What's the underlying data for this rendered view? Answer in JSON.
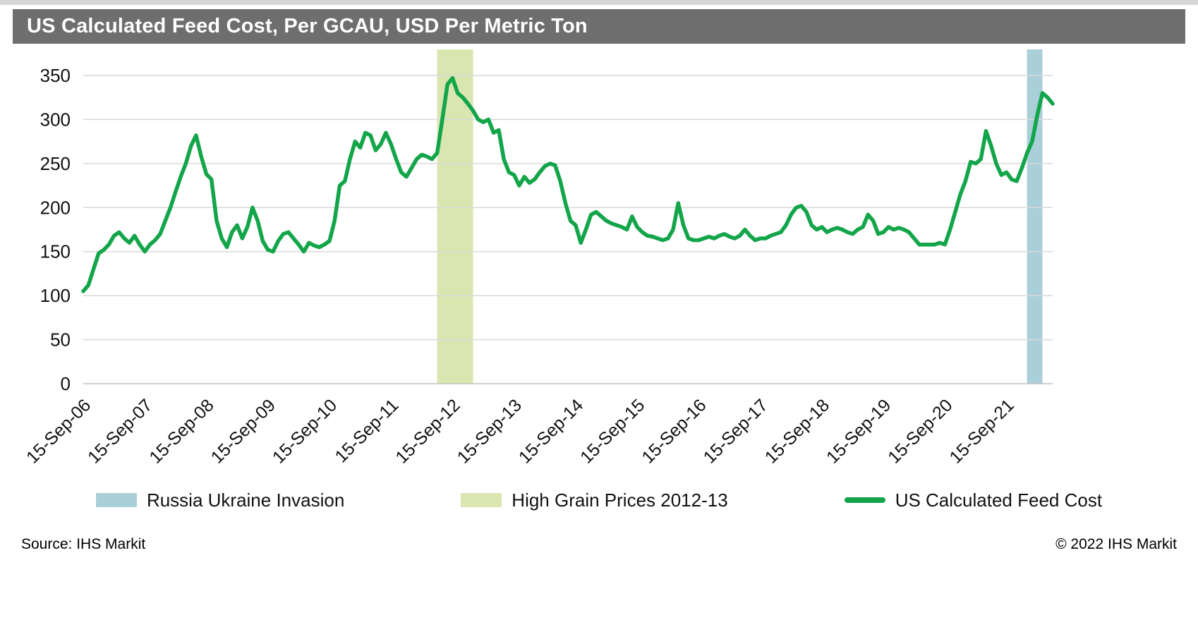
{
  "title": "US Calculated Feed Cost, Per GCAU, USD Per Metric Ton",
  "footer": {
    "source": "Source: IHS Markit",
    "copyright": "© 2022 IHS Markit"
  },
  "legend": {
    "items": [
      {
        "label": "Russia Ukraine Invasion",
        "type": "band",
        "color": "#a9cfd9"
      },
      {
        "label": "High Grain Prices 2012-13",
        "type": "band",
        "color": "#d9e6b0"
      },
      {
        "label": "US Calculated Feed Cost",
        "type": "line",
        "color": "#13a549"
      }
    ]
  },
  "chart_data": {
    "type": "line",
    "title": "US Calculated Feed Cost, Per GCAU, USD Per Metric Ton",
    "xlabel": "",
    "ylabel": "",
    "ylim": [
      0,
      350
    ],
    "ytick_interval": 50,
    "grid": true,
    "legend_position": "bottom",
    "x_unit": "month",
    "x_start": "15-Sep-06",
    "tick_indices": [
      0,
      12,
      24,
      36,
      48,
      60,
      72,
      84,
      96,
      108,
      120,
      132,
      144,
      156,
      168,
      180
    ],
    "tick_labels": [
      "15-Sep-06",
      "15-Sep-07",
      "15-Sep-08",
      "15-Sep-09",
      "15-Sep-10",
      "15-Sep-11",
      "15-Sep-12",
      "15-Sep-13",
      "15-Sep-14",
      "15-Sep-15",
      "15-Sep-16",
      "15-Sep-17",
      "15-Sep-18",
      "15-Sep-19",
      "15-Sep-20",
      "15-Sep-21"
    ],
    "series": [
      {
        "name": "US Calculated Feed Cost",
        "color": "#13a549",
        "values": [
          105,
          112,
          130,
          148,
          152,
          158,
          168,
          172,
          165,
          160,
          168,
          158,
          150,
          158,
          163,
          170,
          185,
          200,
          218,
          235,
          250,
          270,
          282,
          258,
          238,
          232,
          185,
          165,
          155,
          172,
          180,
          165,
          178,
          200,
          185,
          162,
          152,
          150,
          162,
          170,
          172,
          165,
          158,
          150,
          160,
          157,
          155,
          158,
          162,
          185,
          225,
          230,
          255,
          275,
          268,
          285,
          282,
          265,
          272,
          285,
          272,
          255,
          240,
          235,
          245,
          255,
          260,
          258,
          255,
          262,
          300,
          340,
          347,
          330,
          325,
          318,
          310,
          300,
          297,
          300,
          285,
          288,
          255,
          240,
          237,
          225,
          235,
          228,
          232,
          240,
          247,
          250,
          248,
          230,
          205,
          185,
          180,
          160,
          175,
          192,
          195,
          190,
          185,
          182,
          180,
          178,
          175,
          190,
          178,
          172,
          168,
          167,
          165,
          163,
          165,
          175,
          205,
          180,
          165,
          163,
          163,
          165,
          167,
          165,
          168,
          170,
          167,
          165,
          168,
          175,
          168,
          163,
          165,
          165,
          168,
          170,
          172,
          180,
          192,
          200,
          202,
          195,
          180,
          175,
          178,
          172,
          175,
          177,
          175,
          172,
          170,
          175,
          178,
          192,
          185,
          170,
          172,
          178,
          175,
          177,
          175,
          172,
          165,
          158,
          158,
          158,
          158,
          160,
          158,
          175,
          195,
          215,
          230,
          252,
          250,
          255,
          287,
          270,
          250,
          237,
          240,
          232,
          230,
          245,
          262,
          275,
          305,
          330,
          325,
          318
        ]
      }
    ],
    "bands": [
      {
        "name": "High Grain Prices 2012-13",
        "start_index": 69,
        "end_index": 76,
        "color": "#d9e6b0"
      },
      {
        "name": "Russia Ukraine Invasion",
        "start_index": 184,
        "end_index": 187,
        "color": "#a9cfd9"
      }
    ]
  }
}
